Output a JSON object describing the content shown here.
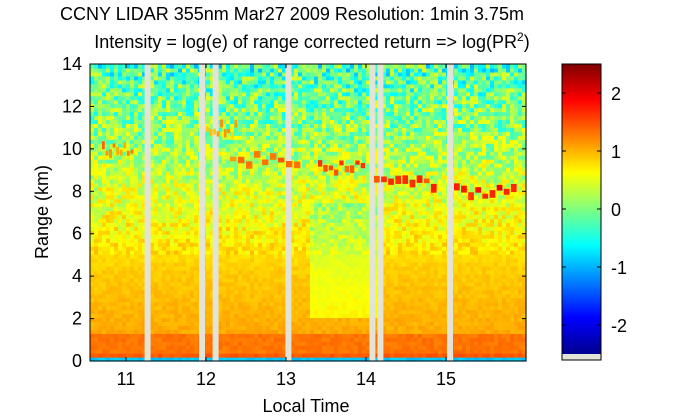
{
  "chart_data": {
    "type": "heatmap",
    "title_line1": "CCNY LIDAR 355nm Mar27 2009 Resolution: 1min 3.75m",
    "title_line2_prefix": "Intensity = log(e) of range corrected return => log(PR",
    "title_line2_sup": "2",
    "title_line2_suffix": ")",
    "xlabel": "Local Time",
    "ylabel": "Range (km)",
    "x_ticks": [
      {
        "value": 11,
        "label": "11"
      },
      {
        "value": 12,
        "label": "12"
      },
      {
        "value": 13,
        "label": "13"
      },
      {
        "value": 14,
        "label": "14"
      },
      {
        "value": 15,
        "label": "15"
      }
    ],
    "y_ticks": [
      {
        "value": 0,
        "label": "0"
      },
      {
        "value": 2,
        "label": "2"
      },
      {
        "value": 4,
        "label": "4"
      },
      {
        "value": 6,
        "label": "6"
      },
      {
        "value": 8,
        "label": "8"
      },
      {
        "value": 10,
        "label": "10"
      },
      {
        "value": 12,
        "label": "12"
      },
      {
        "value": 14,
        "label": "14"
      }
    ],
    "xlim": [
      10.55,
      16.0
    ],
    "ylim": [
      0,
      14
    ],
    "colorbar": {
      "clim": [
        -2.5,
        2.5
      ],
      "ticks": [
        {
          "value": 2,
          "label": "2"
        },
        {
          "value": 1,
          "label": "1"
        },
        {
          "value": 0,
          "label": "0"
        },
        {
          "value": -1,
          "label": "-1"
        },
        {
          "value": -2,
          "label": "-2"
        }
      ],
      "colormap": "jet"
    },
    "data_gaps_time": [
      11.27,
      11.95,
      12.12,
      13.03,
      14.08,
      14.18,
      15.05
    ],
    "cloud_layers": [
      {
        "t_start": 10.7,
        "t_end": 11.1,
        "range_km": 10.1,
        "intensity": 1.2
      },
      {
        "t_start": 12.0,
        "t_end": 12.4,
        "range_km": 11.0,
        "intensity": 1.0
      },
      {
        "t_start": 12.3,
        "t_end": 13.2,
        "range_km": 9.6,
        "intensity": 1.3
      },
      {
        "t_start": 13.4,
        "t_end": 14.0,
        "range_km": 9.1,
        "intensity": 1.5
      },
      {
        "t_start": 14.1,
        "t_end": 14.9,
        "range_km": 8.4,
        "intensity": 1.6
      },
      {
        "t_start": 15.1,
        "t_end": 15.9,
        "range_km": 8.0,
        "intensity": 1.8
      }
    ]
  }
}
